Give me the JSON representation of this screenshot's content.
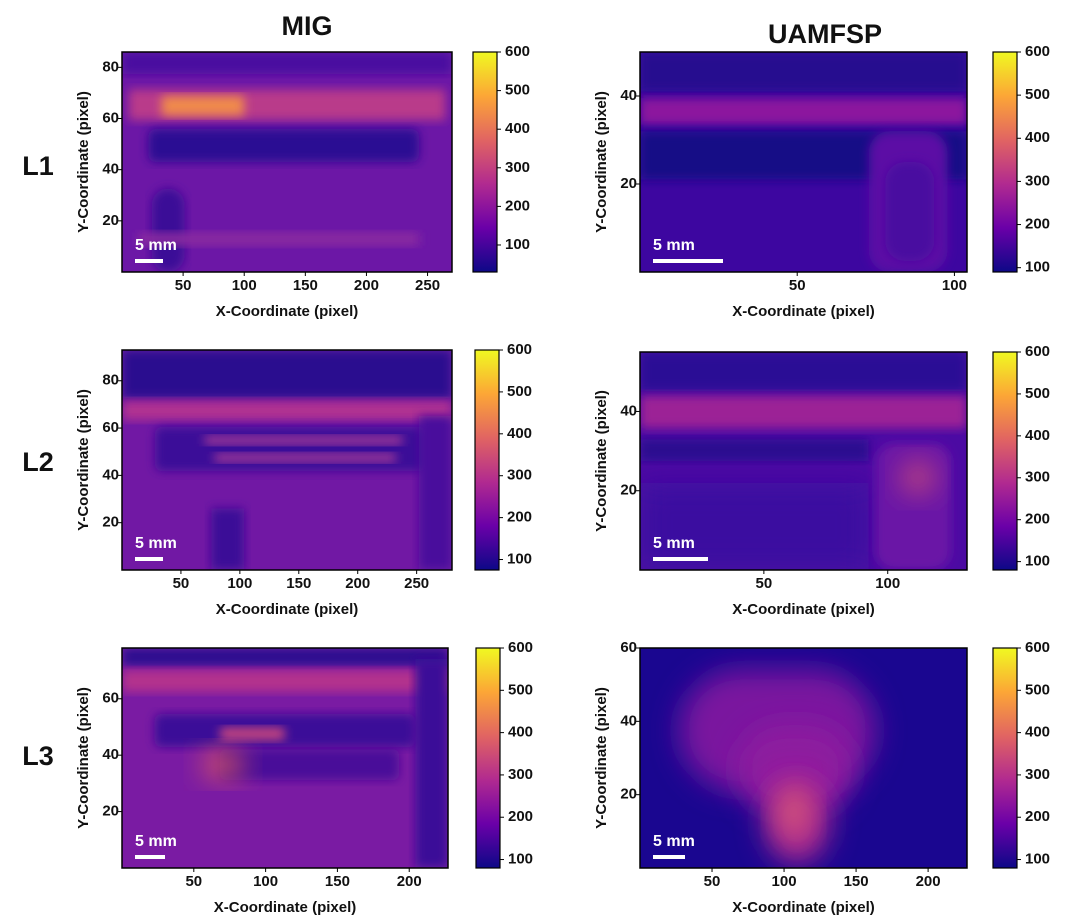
{
  "column_titles": [
    "MIG",
    "UAMFSP"
  ],
  "row_labels": [
    "L1",
    "L2",
    "L3"
  ],
  "chart_data": [
    {
      "type": "heatmap",
      "xlabel": "X-Coordinate (pixel)",
      "ylabel": "Y-Coordinate (pixel)",
      "scale_bar": "5 mm",
      "colormap": "plasma",
      "xlim": [
        0,
        270
      ],
      "xticks": [
        50,
        100,
        150,
        200,
        250
      ],
      "ylim": [
        0,
        86
      ],
      "yticks": [
        20,
        40,
        60,
        80
      ],
      "colorbar": {
        "lim": [
          30,
          600
        ],
        "ticks": [
          100,
          200,
          300,
          400,
          500,
          600
        ]
      }
    },
    {
      "type": "heatmap",
      "xlabel": "X-Coordinate (pixel)",
      "ylabel": "Y-Coordinate (pixel)",
      "scale_bar": "5 mm",
      "colormap": "plasma",
      "xlim": [
        0,
        104
      ],
      "xticks": [
        50,
        100
      ],
      "ylim": [
        0,
        50
      ],
      "yticks": [
        20,
        40
      ],
      "colorbar": {
        "lim": [
          90,
          600
        ],
        "ticks": [
          100,
          200,
          300,
          400,
          500,
          600
        ]
      }
    },
    {
      "type": "heatmap",
      "xlabel": "X-Coordinate (pixel)",
      "ylabel": "Y-Coordinate (pixel)",
      "scale_bar": "5 mm",
      "colormap": "plasma",
      "xlim": [
        0,
        280
      ],
      "xticks": [
        50,
        100,
        150,
        200,
        250
      ],
      "ylim": [
        0,
        93
      ],
      "yticks": [
        20,
        40,
        60,
        80
      ],
      "colorbar": {
        "lim": [
          75,
          600
        ],
        "ticks": [
          100,
          200,
          300,
          400,
          500,
          600
        ]
      }
    },
    {
      "type": "heatmap",
      "xlabel": "X-Coordinate (pixel)",
      "ylabel": "Y-Coordinate (pixel)",
      "scale_bar": "5 mm",
      "colormap": "plasma",
      "xlim": [
        0,
        132
      ],
      "xticks": [
        50,
        100
      ],
      "ylim": [
        0,
        55
      ],
      "yticks": [
        20,
        40
      ],
      "colorbar": {
        "lim": [
          80,
          600
        ],
        "ticks": [
          100,
          200,
          300,
          400,
          500,
          600
        ]
      }
    },
    {
      "type": "heatmap",
      "xlabel": "X-Coordinate (pixel)",
      "ylabel": "Y-Coordinate (pixel)",
      "scale_bar": "5 mm",
      "colormap": "plasma",
      "xlim": [
        0,
        227
      ],
      "xticks": [
        50,
        100,
        150,
        200
      ],
      "ylim": [
        0,
        78
      ],
      "yticks": [
        20,
        40,
        60
      ],
      "colorbar": {
        "lim": [
          80,
          600
        ],
        "ticks": [
          100,
          200,
          300,
          400,
          500,
          600
        ]
      }
    },
    {
      "type": "heatmap",
      "xlabel": "X-Coordinate (pixel)",
      "ylabel": "Y-Coordinate (pixel)",
      "scale_bar": "5 mm",
      "colormap": "plasma",
      "xlim": [
        0,
        227
      ],
      "xticks": [
        50,
        100,
        150,
        200
      ],
      "ylim": [
        0,
        60
      ],
      "yticks": [
        20,
        40,
        60
      ],
      "colorbar": {
        "lim": [
          80,
          600
        ],
        "ticks": [
          100,
          200,
          300,
          400,
          500,
          600
        ]
      }
    }
  ]
}
